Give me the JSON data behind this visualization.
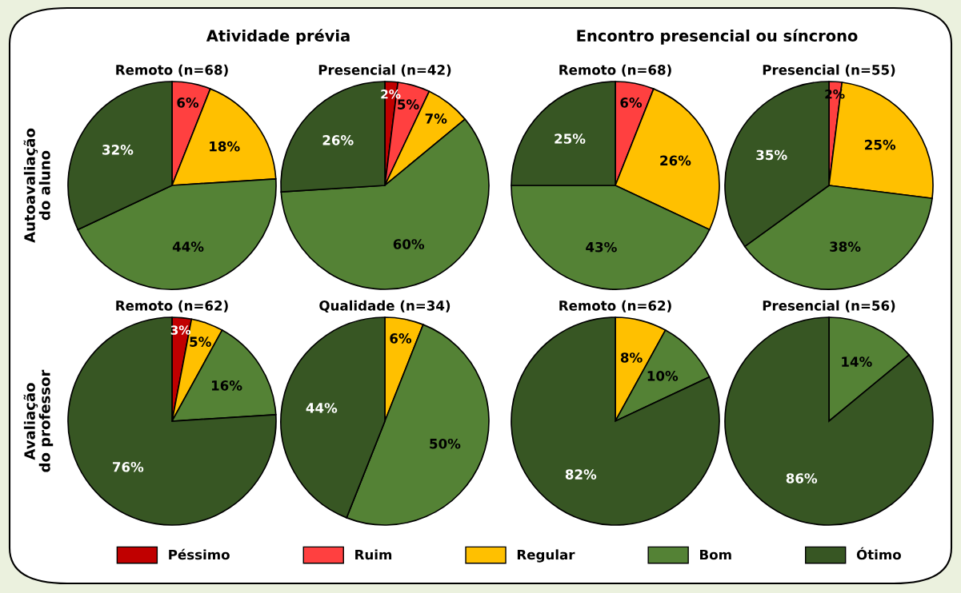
{
  "chart_data": [
    {
      "type": "pie",
      "title": "Remoto (n=68)",
      "categories": [
        "Péssimo",
        "Ruim",
        "Regular",
        "Bom",
        "Ótimo"
      ],
      "values": [
        0,
        6,
        18,
        44,
        32
      ],
      "value_labels": [
        null,
        "6%",
        "18%",
        "44%",
        "32%"
      ],
      "colors": [
        "#c00000",
        "#ff4040",
        "#ffc000",
        "#548235",
        "#375623"
      ],
      "legend": "bottom",
      "annotations": [
        "Atividade prévia",
        "Encontro presencial ou síncrono",
        "Autoavaliação\ndo aluno",
        "Avaliação\ndo professor"
      ]
    },
    {
      "type": "pie",
      "title": "Presencial (n=42)",
      "categories": [
        null,
        null,
        null,
        null,
        null
      ],
      "values": [
        2,
        5,
        7,
        60,
        26
      ],
      "value_labels": [
        "2%",
        "5%",
        "7%",
        "60%",
        "26%"
      ],
      "colors": [
        "#c00000",
        "#ff4040",
        "#ffc000",
        "#548235",
        "#375623"
      ]
    },
    {
      "type": "pie",
      "title": "Remoto (n=68)",
      "categories": [
        null,
        null,
        null,
        null,
        null
      ],
      "values": [
        0,
        6,
        26,
        43,
        25
      ],
      "value_labels": [
        null,
        "6%",
        "26%",
        "43%",
        "25%"
      ],
      "colors": [
        "#c00000",
        "#ff4040",
        "#ffc000",
        "#548235",
        "#375623"
      ]
    },
    {
      "type": "pie",
      "title": "Presencial (n=55)",
      "categories": [
        null,
        null,
        null,
        null,
        null
      ],
      "values": [
        0,
        2,
        25,
        38,
        35
      ],
      "value_labels": [
        null,
        "2%",
        "25%",
        "38%",
        "35%"
      ],
      "colors": [
        "#c00000",
        "#ff4040",
        "#ffc000",
        "#548235",
        "#375623"
      ]
    },
    {
      "type": "pie",
      "title": "Remoto (n=62)",
      "categories": [
        null,
        null,
        null,
        null,
        null
      ],
      "values": [
        3,
        0,
        5,
        16,
        76
      ],
      "value_labels": [
        "3%",
        null,
        "5%",
        "16%",
        "76%"
      ],
      "colors": [
        "#c00000",
        "#ff4040",
        "#ffc000",
        "#548235",
        "#375623"
      ]
    },
    {
      "type": "pie",
      "title": "Qualidade (n=34)",
      "categories": [
        null,
        null,
        null,
        null,
        null
      ],
      "values": [
        0,
        0,
        6,
        50,
        44
      ],
      "value_labels": [
        null,
        null,
        "6%",
        "50%",
        "44%"
      ],
      "colors": [
        "#c00000",
        "#ff4040",
        "#ffc000",
        "#548235",
        "#375623"
      ]
    },
    {
      "type": "pie",
      "title": "Remoto (n=62)",
      "categories": [
        null,
        null,
        null,
        null,
        null
      ],
      "values": [
        0,
        0,
        8,
        10,
        82
      ],
      "value_labels": [
        null,
        null,
        "8%",
        "10%",
        "82%"
      ],
      "colors": [
        "#c00000",
        "#ff4040",
        "#ffc000",
        "#548235",
        "#375623"
      ]
    },
    {
      "type": "pie",
      "title": "Presencial (n=56)",
      "categories": [
        null,
        null,
        null,
        null,
        null
      ],
      "values": [
        0,
        0,
        0,
        14,
        86
      ],
      "value_labels": [
        null,
        null,
        null,
        "14%",
        "86%"
      ],
      "colors": [
        "#c00000",
        "#ff4040",
        "#ffc000",
        "#548235",
        "#375623"
      ]
    }
  ]
}
